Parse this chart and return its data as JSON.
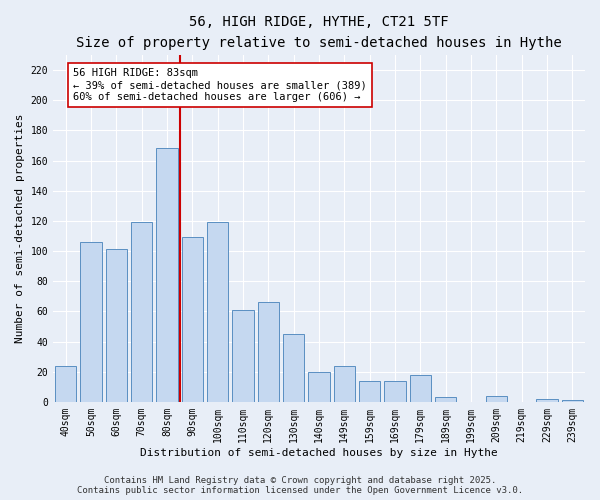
{
  "title": "56, HIGH RIDGE, HYTHE, CT21 5TF",
  "subtitle": "Size of property relative to semi-detached houses in Hythe",
  "xlabel": "Distribution of semi-detached houses by size in Hythe",
  "ylabel": "Number of semi-detached properties",
  "categories": [
    "40sqm",
    "50sqm",
    "60sqm",
    "70sqm",
    "80sqm",
    "90sqm",
    "100sqm",
    "110sqm",
    "120sqm",
    "130sqm",
    "140sqm",
    "149sqm",
    "159sqm",
    "169sqm",
    "179sqm",
    "189sqm",
    "199sqm",
    "209sqm",
    "219sqm",
    "229sqm",
    "239sqm"
  ],
  "values": [
    24,
    106,
    101,
    119,
    168,
    109,
    119,
    61,
    66,
    45,
    20,
    24,
    14,
    14,
    18,
    3,
    0,
    4,
    0,
    2,
    1
  ],
  "bar_color": "#c5d8f0",
  "bar_edge_color": "#5a8fc2",
  "background_color": "#e8eef7",
  "property_label": "56 HIGH RIDGE: 83sqm",
  "smaller_pct": "39% of semi-detached houses are smaller (389)",
  "larger_pct": "60% of semi-detached houses are larger (606)",
  "annotation_box_color": "#ffffff",
  "annotation_box_edge": "#cc0000",
  "red_line_color": "#cc0000",
  "ylim": [
    0,
    230
  ],
  "yticks": [
    0,
    20,
    40,
    60,
    80,
    100,
    120,
    140,
    160,
    180,
    200,
    220
  ],
  "footer1": "Contains HM Land Registry data © Crown copyright and database right 2025.",
  "footer2": "Contains public sector information licensed under the Open Government Licence v3.0.",
  "title_fontsize": 10,
  "subtitle_fontsize": 9,
  "axis_label_fontsize": 8,
  "tick_fontsize": 7,
  "annotation_fontsize": 7.5,
  "footer_fontsize": 6.5
}
